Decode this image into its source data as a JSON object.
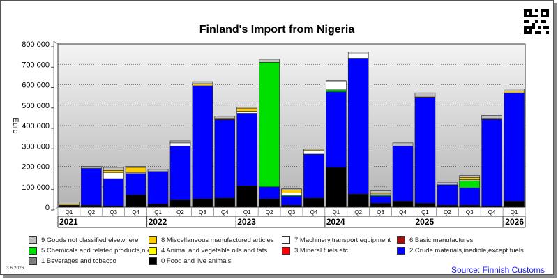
{
  "chart_data": {
    "type": "bar",
    "stacked": true,
    "title": "Finland's Import from Nigeria",
    "ylabel": "Euro",
    "ylim": [
      0,
      800000
    ],
    "yticks": [
      0,
      100000,
      200000,
      300000,
      400000,
      500000,
      600000,
      700000,
      800000
    ],
    "ytick_labels": [
      "0",
      "100 000",
      "200 000",
      "300 000",
      "400 000",
      "500 000",
      "600 000",
      "700 000",
      "800 000"
    ],
    "quarters": [
      "Q1",
      "Q2",
      "Q3",
      "Q4",
      "Q1",
      "Q2",
      "Q3",
      "Q4",
      "Q1",
      "Q2",
      "Q3",
      "Q4",
      "Q1",
      "Q2",
      "Q3",
      "Q4",
      "Q1",
      "Q2",
      "Q3",
      "Q4",
      "Q1"
    ],
    "years": [
      {
        "label": "2021",
        "start": 0,
        "end": 3
      },
      {
        "label": "2022",
        "start": 4,
        "end": 7
      },
      {
        "label": "2023",
        "start": 8,
        "end": 11
      },
      {
        "label": "2024",
        "start": 12,
        "end": 15
      },
      {
        "label": "2025",
        "start": 16,
        "end": 19
      },
      {
        "label": "2026",
        "start": 20,
        "end": 20
      }
    ],
    "grid": true,
    "legend_position": "bottom",
    "series": [
      {
        "name": "0 Food and live animals",
        "color": "#000000",
        "values": [
          10000,
          10000,
          5000,
          60000,
          15000,
          35000,
          40000,
          45000,
          105000,
          40000,
          10000,
          45000,
          195000,
          65000,
          20000,
          30000,
          20000,
          10000,
          10000,
          5000,
          30000
        ]
      },
      {
        "name": "1 Beverages and tobacco",
        "color": "#808080",
        "values": [
          0,
          0,
          0,
          0,
          0,
          0,
          0,
          0,
          0,
          0,
          0,
          0,
          0,
          0,
          0,
          0,
          0,
          0,
          0,
          0,
          0
        ]
      },
      {
        "name": "2 Crude materials,inedible,except fuels",
        "color": "#0000ff",
        "values": [
          0,
          180000,
          135000,
          105000,
          160000,
          265000,
          555000,
          385000,
          355000,
          60000,
          45000,
          215000,
          370000,
          665000,
          35000,
          270000,
          520000,
          100000,
          85000,
          425000,
          530000
        ]
      },
      {
        "name": "3 Mineral fuels etc",
        "color": "#ff0000",
        "values": [
          0,
          0,
          0,
          0,
          0,
          0,
          0,
          0,
          0,
          0,
          0,
          0,
          0,
          0,
          0,
          0,
          0,
          0,
          0,
          0,
          0
        ]
      },
      {
        "name": "4 Animal and vegetable oils and fats",
        "color": "#ffff00",
        "values": [
          0,
          0,
          0,
          0,
          0,
          0,
          0,
          0,
          0,
          0,
          0,
          0,
          0,
          0,
          0,
          0,
          0,
          0,
          0,
          0,
          0
        ]
      },
      {
        "name": "5 Chemicals and related products,n.e.s.",
        "color": "#00e000",
        "values": [
          0,
          0,
          0,
          0,
          0,
          0,
          0,
          0,
          0,
          610000,
          5000,
          0,
          10000,
          0,
          5000,
          0,
          0,
          0,
          35000,
          0,
          0
        ]
      },
      {
        "name": "6 Basic manufactures",
        "color": "#a01010",
        "values": [
          0,
          0,
          0,
          0,
          0,
          0,
          0,
          0,
          0,
          0,
          0,
          0,
          0,
          0,
          0,
          0,
          0,
          0,
          0,
          0,
          0
        ]
      },
      {
        "name": "7 Machinery,transport equipment",
        "color": "#ffffff",
        "values": [
          0,
          5000,
          30000,
          5000,
          0,
          15000,
          0,
          0,
          10000,
          5000,
          10000,
          15000,
          40000,
          20000,
          5000,
          0,
          0,
          0,
          5000,
          5000,
          0
        ]
      },
      {
        "name": "8 Miscellaneous manufactured articles",
        "color": "#ffcc00",
        "values": [
          5000,
          0,
          10000,
          25000,
          0,
          0,
          10000,
          5000,
          15000,
          0,
          15000,
          5000,
          0,
          0,
          5000,
          0,
          5000,
          0,
          10000,
          0,
          10000
        ]
      },
      {
        "name": "9 Goods not classified elsewhere",
        "color": "#c0c0c0",
        "values": [
          10000,
          5000,
          15000,
          5000,
          10000,
          10000,
          10000,
          10000,
          5000,
          10000,
          5000,
          5000,
          5000,
          10000,
          10000,
          15000,
          15000,
          10000,
          10000,
          15000,
          10000
        ]
      }
    ],
    "legend_rows": [
      [
        "9 Goods not classified elsewhere",
        "8 Miscellaneous manufactured articles",
        "7 Machinery,transport equipment",
        "6 Basic manufactures"
      ],
      [
        "5 Chemicals and related products,n.e.s.",
        "4 Animal and vegetable oils and fats",
        "3 Mineral fuels etc",
        "2 Crude materials,inedible,except fuels"
      ],
      [
        "1 Beverages and tobacco",
        "0 Food and live animals"
      ]
    ]
  },
  "footer": {
    "date": "3.6.2026",
    "source": "Source: Finnish Customs"
  }
}
